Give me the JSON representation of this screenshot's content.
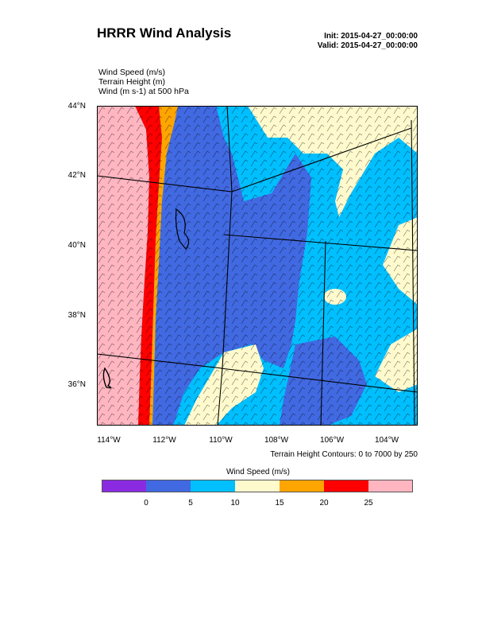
{
  "header": {
    "title": "HRRR Wind Analysis",
    "init": "Init: 2015-04-27_00:00:00",
    "valid": "Valid: 2015-04-27_00:00:00"
  },
  "variables": {
    "line1": "Wind Speed   (m/s)",
    "line2": "Terrain Height   (m)",
    "line3": "Wind   (m s-1)    at   500 hPa"
  },
  "axes": {
    "lat_labels": [
      "44°N",
      "42°N",
      "40°N",
      "38°N",
      "36°N"
    ],
    "lon_labels": [
      "114°W",
      "112°W",
      "110°W",
      "108°W",
      "106°W",
      "104°W"
    ]
  },
  "contour_note": "Terrain Height Contours: 0 to 7000 by 250",
  "colorbar": {
    "title": "Wind Speed  (m/s)",
    "tick_labels": [
      "0",
      "5",
      "10",
      "15",
      "20",
      "25"
    ],
    "colors": [
      "#8a2be2",
      "#4169e1",
      "#00bfff",
      "#fffacd",
      "#ffa500",
      "#ff0000",
      "#ffb6c1"
    ]
  },
  "map_colors": {
    "weak": "#4169e1",
    "moderate": "#00bfff",
    "fresh": "#fffacd",
    "strong": "#ffa500",
    "very_strong": "#ff0000",
    "extreme": "#ffb6c1",
    "boundary": "#000000"
  }
}
